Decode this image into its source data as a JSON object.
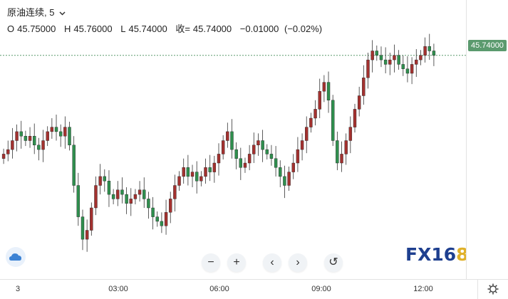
{
  "legend": {
    "symbol": "原油连续",
    "interval": "5",
    "open_label": "O",
    "open": "45.75000",
    "high_label": "H",
    "high": "45.76000",
    "low_label": "L",
    "low": "45.74000",
    "close_label": "收=",
    "close": "45.74000",
    "change": "−0.01000",
    "change_pct": "(−0.02%)"
  },
  "price_axis": {
    "current_price": "45.74000"
  },
  "time_axis": {
    "labels": [
      "3",
      "03:00",
      "06:00",
      "09:00",
      "12:00"
    ]
  },
  "nav": {
    "zoom_out": "−",
    "zoom_in": "+",
    "scroll_left": "‹",
    "scroll_right": "›",
    "reset": "↺"
  },
  "watermark": {
    "text": "FX16",
    "accent": "8"
  },
  "colors": {
    "up": "#a3312f",
    "down": "#2f8f4e",
    "price_line": "#5b9a6e",
    "background": "#ffffff"
  },
  "chart_data": {
    "type": "candlestick",
    "title": "原油连续, 5",
    "x_labels": [
      "3",
      "03:00",
      "06:00",
      "09:00",
      "12:00"
    ],
    "last_price": 45.74,
    "close_series": [
      45.52,
      45.53,
      45.55,
      45.57,
      45.56,
      45.55,
      45.56,
      45.54,
      45.53,
      45.55,
      45.57,
      45.58,
      45.57,
      45.56,
      45.58,
      45.54,
      45.45,
      45.38,
      45.33,
      45.35,
      45.4,
      45.45,
      45.47,
      45.46,
      45.43,
      45.42,
      45.44,
      45.43,
      45.41,
      45.42,
      45.43,
      45.44,
      45.42,
      45.4,
      45.38,
      45.37,
      45.36,
      45.39,
      45.42,
      45.45,
      45.47,
      45.49,
      45.47,
      45.48,
      45.46,
      45.47,
      45.49,
      45.48,
      45.5,
      45.52,
      45.55,
      45.57,
      45.53,
      45.51,
      45.49,
      45.5,
      45.52,
      45.54,
      45.55,
      45.53,
      45.52,
      45.51,
      45.49,
      45.47,
      45.45,
      45.48,
      45.5,
      45.53,
      45.55,
      45.58,
      45.6,
      45.62,
      45.66,
      45.68,
      45.64,
      45.55,
      45.5,
      45.52,
      45.55,
      45.58,
      45.62,
      45.65,
      45.69,
      45.73,
      45.75,
      45.74,
      45.73,
      45.72,
      45.73,
      45.74,
      45.72,
      45.71,
      45.7,
      45.72,
      45.73,
      45.74,
      45.76,
      45.75,
      45.74
    ]
  }
}
